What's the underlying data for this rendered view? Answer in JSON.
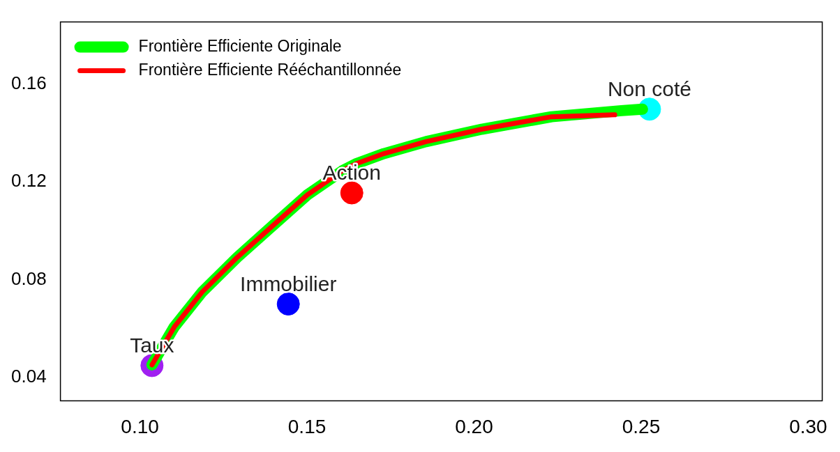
{
  "chart_data": {
    "type": "line",
    "xlim": [
      0.0762,
      0.3042
    ],
    "ylim": [
      0.0304,
      0.1855
    ],
    "xticks": [
      {
        "value": 0.1,
        "label": "0.10"
      },
      {
        "value": 0.15,
        "label": "0.15"
      },
      {
        "value": 0.2,
        "label": "0.20"
      },
      {
        "value": 0.25,
        "label": "0.25"
      },
      {
        "value": 0.3,
        "label": "0.30"
      }
    ],
    "yticks": [
      {
        "value": 0.04,
        "label": "0.04"
      },
      {
        "value": 0.08,
        "label": "0.08"
      },
      {
        "value": 0.12,
        "label": "0.12"
      },
      {
        "value": 0.16,
        "label": "0.16"
      }
    ],
    "grid": false,
    "legend": "top left",
    "series": [
      {
        "name": "Frontière Efficiente Originale",
        "color": "#00ff00",
        "x": [
          0.1036,
          0.1103,
          0.1186,
          0.1291,
          0.1395,
          0.15,
          0.1605,
          0.1646,
          0.173,
          0.1856,
          0.2023,
          0.2232,
          0.2441,
          0.2504
        ],
        "values": [
          0.0451,
          0.0607,
          0.0749,
          0.0891,
          0.1018,
          0.1146,
          0.1245,
          0.1274,
          0.1316,
          0.1365,
          0.1416,
          0.1467,
          0.1492,
          0.1498
        ]
      },
      {
        "name": "Frontière Efficiente Rééchantillonnée",
        "color": "#ff0000",
        "x": [
          0.1036,
          0.1103,
          0.1186,
          0.1291,
          0.1395,
          0.15,
          0.1605,
          0.1646,
          0.173,
          0.1856,
          0.2023,
          0.2232,
          0.2421
        ],
        "values": [
          0.0451,
          0.0607,
          0.0749,
          0.0891,
          0.1018,
          0.1146,
          0.1245,
          0.1274,
          0.1316,
          0.1365,
          0.1416,
          0.1467,
          0.1475
        ]
      },
      {
        "name": "Taux",
        "type": "scatter",
        "color": "#a020f0",
        "x": [
          0.1036
        ],
        "values": [
          0.0448
        ]
      },
      {
        "name": "Immobilier",
        "type": "scatter",
        "color": "#0000ff",
        "x": [
          0.1444
        ],
        "values": [
          0.07
        ]
      },
      {
        "name": "Action",
        "type": "scatter",
        "color": "#ff0000",
        "x": [
          0.1634
        ],
        "values": [
          0.1155
        ]
      },
      {
        "name": "Non coté",
        "type": "scatter",
        "color": "#00ffff",
        "x": [
          0.2525
        ],
        "values": [
          0.1498
        ]
      }
    ]
  }
}
